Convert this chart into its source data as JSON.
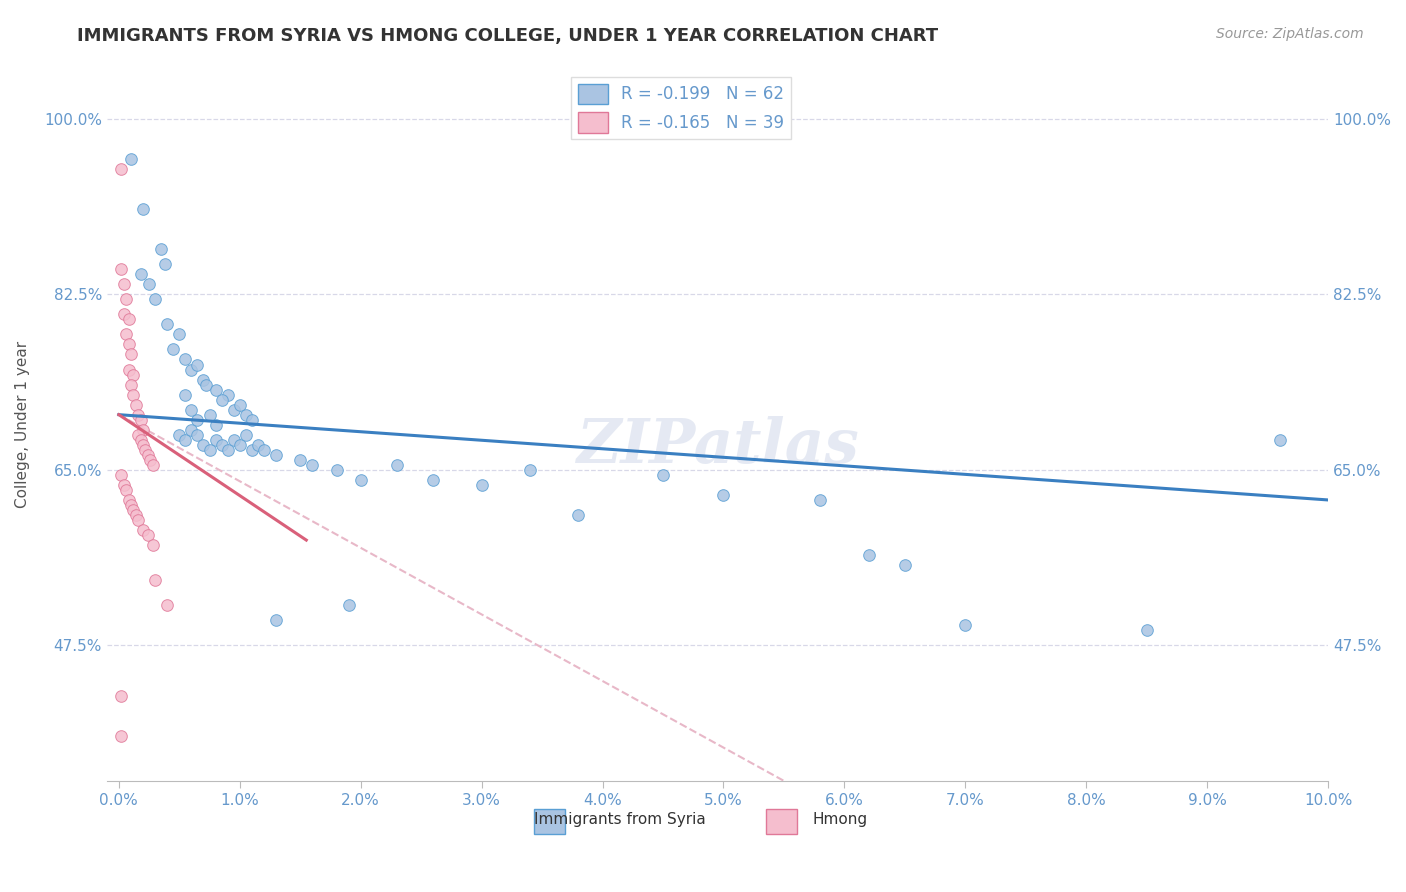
{
  "title": "IMMIGRANTS FROM SYRIA VS HMONG COLLEGE, UNDER 1 YEAR CORRELATION CHART",
  "source": "Source: ZipAtlas.com",
  "ylabel": "College, Under 1 year",
  "xlim": [
    -0.1,
    10.0
  ],
  "ylim": [
    34.0,
    105.0
  ],
  "xticks": [
    0.0,
    1.0,
    2.0,
    3.0,
    4.0,
    5.0,
    6.0,
    7.0,
    8.0,
    9.0,
    10.0
  ],
  "yticks": [
    47.5,
    65.0,
    82.5,
    100.0
  ],
  "xticklabels": [
    "0.0%",
    "1.0%",
    "2.0%",
    "3.0%",
    "4.0%",
    "5.0%",
    "6.0%",
    "7.0%",
    "8.0%",
    "9.0%",
    "10.0%"
  ],
  "yticklabels": [
    "47.5%",
    "65.0%",
    "82.5%",
    "100.0%"
  ],
  "legend_R1": "R = -0.199",
  "legend_N1": "N = 62",
  "legend_R2": "R = -0.165",
  "legend_N2": "N = 39",
  "watermark": "ZIPatlas",
  "blue_scatter_color": "#aac4e2",
  "pink_scatter_color": "#f5bece",
  "blue_edge_color": "#5a9fd4",
  "pink_edge_color": "#e07898",
  "blue_line_color": "#3a7fc1",
  "pink_line_color": "#d9607a",
  "dashed_line_color": "#e8b8c8",
  "tick_color": "#6699cc",
  "scatter_blue": [
    [
      0.2,
      91.0
    ],
    [
      0.35,
      87.0
    ],
    [
      0.38,
      85.5
    ],
    [
      0.3,
      82.0
    ],
    [
      0.18,
      84.5
    ],
    [
      0.5,
      78.5
    ],
    [
      0.55,
      76.0
    ],
    [
      0.4,
      79.5
    ],
    [
      0.6,
      75.0
    ],
    [
      0.7,
      74.0
    ],
    [
      0.72,
      73.5
    ],
    [
      0.45,
      77.0
    ],
    [
      0.65,
      75.5
    ],
    [
      0.25,
      83.5
    ],
    [
      0.8,
      73.0
    ],
    [
      0.9,
      72.5
    ],
    [
      0.85,
      72.0
    ],
    [
      0.95,
      71.0
    ],
    [
      1.0,
      71.5
    ],
    [
      1.05,
      70.5
    ],
    [
      0.55,
      72.5
    ],
    [
      0.6,
      71.0
    ],
    [
      0.65,
      70.0
    ],
    [
      0.75,
      70.5
    ],
    [
      0.8,
      69.5
    ],
    [
      1.1,
      70.0
    ],
    [
      0.5,
      68.5
    ],
    [
      0.55,
      68.0
    ],
    [
      0.6,
      69.0
    ],
    [
      0.65,
      68.5
    ],
    [
      0.7,
      67.5
    ],
    [
      0.75,
      67.0
    ],
    [
      0.8,
      68.0
    ],
    [
      0.85,
      67.5
    ],
    [
      0.9,
      67.0
    ],
    [
      0.95,
      68.0
    ],
    [
      1.0,
      67.5
    ],
    [
      1.05,
      68.5
    ],
    [
      1.1,
      67.0
    ],
    [
      1.15,
      67.5
    ],
    [
      1.2,
      67.0
    ],
    [
      1.3,
      66.5
    ],
    [
      1.5,
      66.0
    ],
    [
      1.6,
      65.5
    ],
    [
      1.8,
      65.0
    ],
    [
      2.0,
      64.0
    ],
    [
      2.3,
      65.5
    ],
    [
      2.6,
      64.0
    ],
    [
      3.0,
      63.5
    ],
    [
      3.4,
      65.0
    ],
    [
      3.8,
      60.5
    ],
    [
      4.5,
      64.5
    ],
    [
      5.0,
      62.5
    ],
    [
      5.8,
      62.0
    ],
    [
      6.2,
      56.5
    ],
    [
      6.5,
      55.5
    ],
    [
      7.0,
      49.5
    ],
    [
      8.5,
      49.0
    ],
    [
      9.6,
      68.0
    ],
    [
      0.1,
      96.0
    ],
    [
      1.3,
      50.0
    ],
    [
      1.9,
      51.5
    ]
  ],
  "scatter_pink": [
    [
      0.02,
      95.0
    ],
    [
      0.02,
      85.0
    ],
    [
      0.04,
      83.5
    ],
    [
      0.06,
      82.0
    ],
    [
      0.04,
      80.5
    ],
    [
      0.08,
      80.0
    ],
    [
      0.06,
      78.5
    ],
    [
      0.08,
      77.5
    ],
    [
      0.1,
      76.5
    ],
    [
      0.08,
      75.0
    ],
    [
      0.12,
      74.5
    ],
    [
      0.1,
      73.5
    ],
    [
      0.12,
      72.5
    ],
    [
      0.14,
      71.5
    ],
    [
      0.16,
      70.5
    ],
    [
      0.18,
      70.0
    ],
    [
      0.2,
      69.0
    ],
    [
      0.16,
      68.5
    ],
    [
      0.18,
      68.0
    ],
    [
      0.2,
      67.5
    ],
    [
      0.22,
      67.0
    ],
    [
      0.24,
      66.5
    ],
    [
      0.26,
      66.0
    ],
    [
      0.28,
      65.5
    ],
    [
      0.02,
      64.5
    ],
    [
      0.04,
      63.5
    ],
    [
      0.06,
      63.0
    ],
    [
      0.08,
      62.0
    ],
    [
      0.1,
      61.5
    ],
    [
      0.12,
      61.0
    ],
    [
      0.14,
      60.5
    ],
    [
      0.16,
      60.0
    ],
    [
      0.2,
      59.0
    ],
    [
      0.24,
      58.5
    ],
    [
      0.28,
      57.5
    ],
    [
      0.02,
      42.5
    ],
    [
      0.02,
      38.5
    ],
    [
      0.3,
      54.0
    ],
    [
      0.4,
      51.5
    ]
  ],
  "blue_trendline": [
    [
      0.0,
      70.5
    ],
    [
      10.0,
      62.0
    ]
  ],
  "pink_trendline_solid": [
    [
      0.0,
      70.5
    ],
    [
      1.55,
      58.0
    ]
  ],
  "dashed_trendline": [
    [
      0.0,
      70.5
    ],
    [
      5.5,
      34.0
    ]
  ]
}
